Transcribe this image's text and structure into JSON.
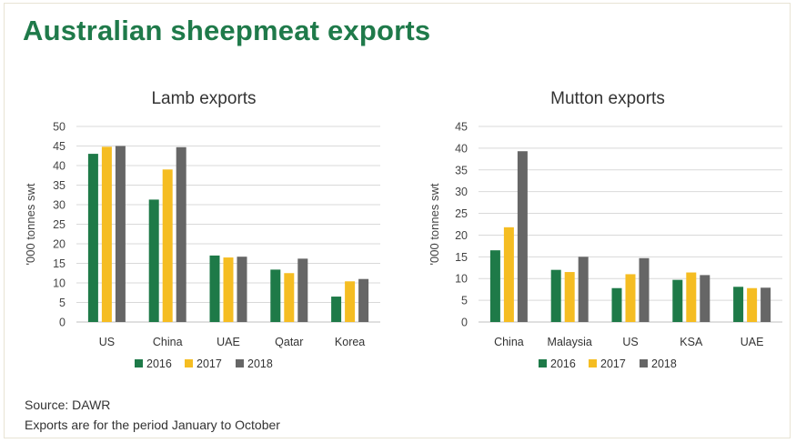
{
  "page": {
    "title": "Australian sheepmeat exports",
    "source_note": "Source: DAWR",
    "period_note": "Exports are for the period January to October"
  },
  "colors": {
    "2016": "#1e7a48",
    "2017": "#f5bd22",
    "2018": "#666666",
    "grid": "#d9d9d9"
  },
  "chart_data": [
    {
      "type": "bar",
      "title": "Lamb exports",
      "ylabel": "'000 tonnes swt",
      "xlabel": "",
      "ylim": [
        0,
        50
      ],
      "yticks": [
        0,
        5,
        10,
        15,
        20,
        25,
        30,
        35,
        40,
        45,
        50
      ],
      "grid": true,
      "legend": "bottom",
      "categories": [
        "US",
        "China",
        "UAE",
        "Qatar",
        "Korea"
      ],
      "series": [
        {
          "name": "2016",
          "values": [
            43,
            31.3,
            17,
            13.4,
            6.5
          ]
        },
        {
          "name": "2017",
          "values": [
            44.8,
            39,
            16.5,
            12.5,
            10.4
          ]
        },
        {
          "name": "2018",
          "values": [
            45,
            44.7,
            16.7,
            16.2,
            11
          ]
        }
      ]
    },
    {
      "type": "bar",
      "title": "Mutton exports",
      "ylabel": "'000 tonnes swt",
      "xlabel": "",
      "ylim": [
        0,
        45
      ],
      "yticks": [
        0,
        5,
        10,
        15,
        20,
        25,
        30,
        35,
        40,
        45
      ],
      "grid": true,
      "legend": "bottom",
      "categories": [
        "China",
        "Malaysia",
        "US",
        "KSA",
        "UAE"
      ],
      "series": [
        {
          "name": "2016",
          "values": [
            16.5,
            12,
            7.8,
            9.7,
            8.1
          ]
        },
        {
          "name": "2017",
          "values": [
            21.8,
            11.5,
            11,
            11.4,
            7.8
          ]
        },
        {
          "name": "2018",
          "values": [
            39.3,
            15,
            14.7,
            10.8,
            7.9
          ]
        }
      ]
    }
  ]
}
